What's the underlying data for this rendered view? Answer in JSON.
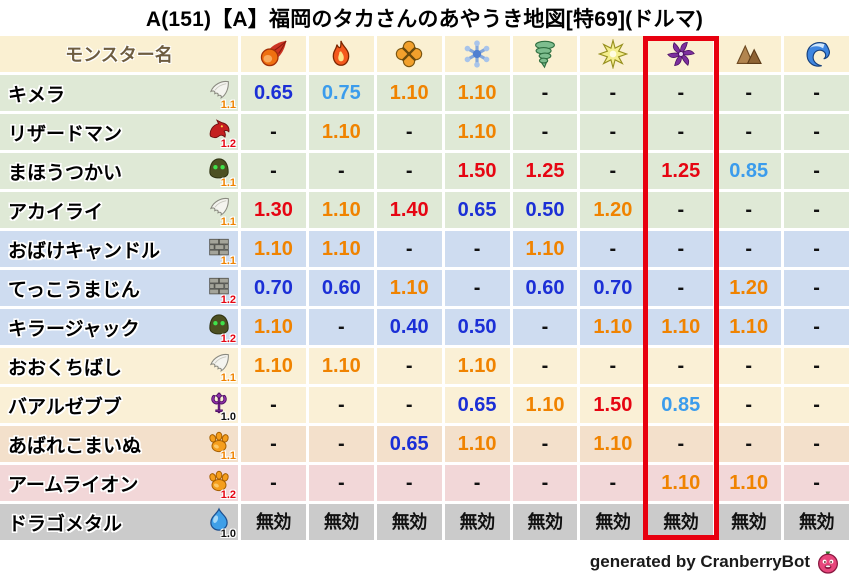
{
  "chart_data": {
    "type": "table",
    "title": "A(151)【A】福岡のタカさんのあやうき地図[特69](ドルマ)",
    "name_header": "モンスター名",
    "element_columns": [
      "fire",
      "blaze",
      "explosion",
      "ice",
      "wind",
      "lightning",
      "dark",
      "earth",
      "water"
    ],
    "element_icons": [
      "fireball-icon",
      "flame-icon",
      "explosion-icon",
      "snowflake-icon",
      "tornado-icon",
      "spark-icon",
      "pinwheel-icon",
      "mountain-icon",
      "wave-icon"
    ],
    "highlighted_column_index": 6,
    "highlighted_column_name": "ドルマ (dark)",
    "rows": [
      {
        "name": "キメラ",
        "family_icon": "wing-icon",
        "multiplier": "1.1",
        "multiplier_color": "orange",
        "row_color": "green",
        "values": [
          "0.65",
          "0.75",
          "1.10",
          "1.10",
          "-",
          "-",
          "-",
          "-",
          "-"
        ],
        "value_styles": [
          "deep-blue",
          "light-blue",
          "orange",
          "orange",
          "dash",
          "dash",
          "dash",
          "dash",
          "dash"
        ]
      },
      {
        "name": "リザードマン",
        "family_icon": "dragon-icon",
        "multiplier": "1.2",
        "multiplier_color": "red",
        "row_color": "green",
        "values": [
          "-",
          "1.10",
          "-",
          "1.10",
          "-",
          "-",
          "-",
          "-",
          "-"
        ],
        "value_styles": [
          "dash",
          "orange",
          "dash",
          "orange",
          "dash",
          "dash",
          "dash",
          "dash",
          "dash"
        ]
      },
      {
        "name": "まほうつかい",
        "family_icon": "hood-icon",
        "multiplier": "1.1",
        "multiplier_color": "orange",
        "row_color": "green",
        "values": [
          "-",
          "-",
          "-",
          "1.50",
          "1.25",
          "-",
          "1.25",
          "0.85",
          "-"
        ],
        "value_styles": [
          "dash",
          "dash",
          "dash",
          "red",
          "red",
          "dash",
          "red",
          "light-blue",
          "dash"
        ]
      },
      {
        "name": "アカイライ",
        "family_icon": "wing-icon",
        "multiplier": "1.1",
        "multiplier_color": "orange",
        "row_color": "green",
        "values": [
          "1.30",
          "1.10",
          "1.40",
          "0.65",
          "0.50",
          "1.20",
          "-",
          "-",
          "-"
        ],
        "value_styles": [
          "red",
          "orange",
          "red",
          "deep-blue",
          "deep-blue",
          "orange",
          "dash",
          "dash",
          "dash"
        ]
      },
      {
        "name": "おばけキャンドル",
        "family_icon": "brick-icon",
        "multiplier": "1.1",
        "multiplier_color": "orange",
        "row_color": "blue",
        "values": [
          "1.10",
          "1.10",
          "-",
          "-",
          "1.10",
          "-",
          "-",
          "-",
          "-"
        ],
        "value_styles": [
          "orange",
          "orange",
          "dash",
          "dash",
          "orange",
          "dash",
          "dash",
          "dash",
          "dash"
        ]
      },
      {
        "name": "てっこうまじん",
        "family_icon": "brick-icon",
        "multiplier": "1.2",
        "multiplier_color": "red",
        "row_color": "blue",
        "values": [
          "0.70",
          "0.60",
          "1.10",
          "-",
          "0.60",
          "0.70",
          "-",
          "1.20",
          "-"
        ],
        "value_styles": [
          "deep-blue",
          "deep-blue",
          "orange",
          "dash",
          "deep-blue",
          "deep-blue",
          "dash",
          "orange",
          "dash"
        ]
      },
      {
        "name": "キラージャック",
        "family_icon": "hood-icon",
        "multiplier": "1.2",
        "multiplier_color": "red",
        "row_color": "blue",
        "values": [
          "1.10",
          "-",
          "0.40",
          "0.50",
          "-",
          "1.10",
          "1.10",
          "1.10",
          "-"
        ],
        "value_styles": [
          "orange",
          "dash",
          "deep-blue",
          "deep-blue",
          "dash",
          "orange",
          "orange",
          "orange",
          "dash"
        ]
      },
      {
        "name": "おおくちばし",
        "family_icon": "wing-icon",
        "multiplier": "1.1",
        "multiplier_color": "orange",
        "row_color": "cream",
        "values": [
          "1.10",
          "1.10",
          "-",
          "1.10",
          "-",
          "-",
          "-",
          "-",
          "-"
        ],
        "value_styles": [
          "orange",
          "orange",
          "dash",
          "orange",
          "dash",
          "dash",
          "dash",
          "dash",
          "dash"
        ]
      },
      {
        "name": "バアルゼブブ",
        "family_icon": "trident-icon",
        "multiplier": "1.0",
        "multiplier_color": "black",
        "row_color": "cream",
        "values": [
          "-",
          "-",
          "-",
          "0.65",
          "1.10",
          "1.50",
          "0.85",
          "-",
          "-"
        ],
        "value_styles": [
          "dash",
          "dash",
          "dash",
          "deep-blue",
          "orange",
          "red",
          "light-blue",
          "dash",
          "dash"
        ]
      },
      {
        "name": "あばれこまいぬ",
        "family_icon": "paw-icon",
        "multiplier": "1.1",
        "multiplier_color": "orange",
        "row_color": "tan",
        "values": [
          "-",
          "-",
          "0.65",
          "1.10",
          "-",
          "1.10",
          "-",
          "-",
          "-"
        ],
        "value_styles": [
          "dash",
          "dash",
          "deep-blue",
          "orange",
          "dash",
          "orange",
          "dash",
          "dash",
          "dash"
        ]
      },
      {
        "name": "アームライオン",
        "family_icon": "paw-icon",
        "multiplier": "1.2",
        "multiplier_color": "red",
        "row_color": "pink",
        "values": [
          "-",
          "-",
          "-",
          "-",
          "-",
          "-",
          "1.10",
          "1.10",
          "-"
        ],
        "value_styles": [
          "dash",
          "dash",
          "dash",
          "dash",
          "dash",
          "dash",
          "orange",
          "orange",
          "dash"
        ]
      },
      {
        "name": "ドラゴメタル",
        "family_icon": "slime-icon",
        "multiplier": "1.0",
        "multiplier_color": "black",
        "row_color": "gray",
        "values": [
          "無効",
          "無効",
          "無効",
          "無効",
          "無効",
          "無効",
          "無効",
          "無効",
          "無効"
        ],
        "value_styles": [
          "immune",
          "immune",
          "immune",
          "immune",
          "immune",
          "immune",
          "immune",
          "immune",
          "immune"
        ]
      }
    ]
  },
  "footer": {
    "credit": "generated by CranberryBot",
    "icon": "cranberry-icon"
  },
  "colors": {
    "header_bg": "#faf0d2",
    "highlight_border": "#e8000f",
    "row_colors": {
      "green": "#dfe9d6",
      "blue": "#cedcf0",
      "cream": "#faf0d6",
      "tan": "#f3e0cb",
      "pink": "#f2d7d8",
      "gray": "#cbcbcb"
    },
    "value_colors": {
      "deep-blue": "#1b2fd6",
      "light-blue": "#3b9cec",
      "orange": "#f08300",
      "red": "#e60512",
      "dash": "#111111",
      "immune": "#111111"
    },
    "multiplier_colors": {
      "orange": "#f08300",
      "red": "#e60512",
      "black": "#111111"
    },
    "name_header_text": "#6e5d40"
  }
}
